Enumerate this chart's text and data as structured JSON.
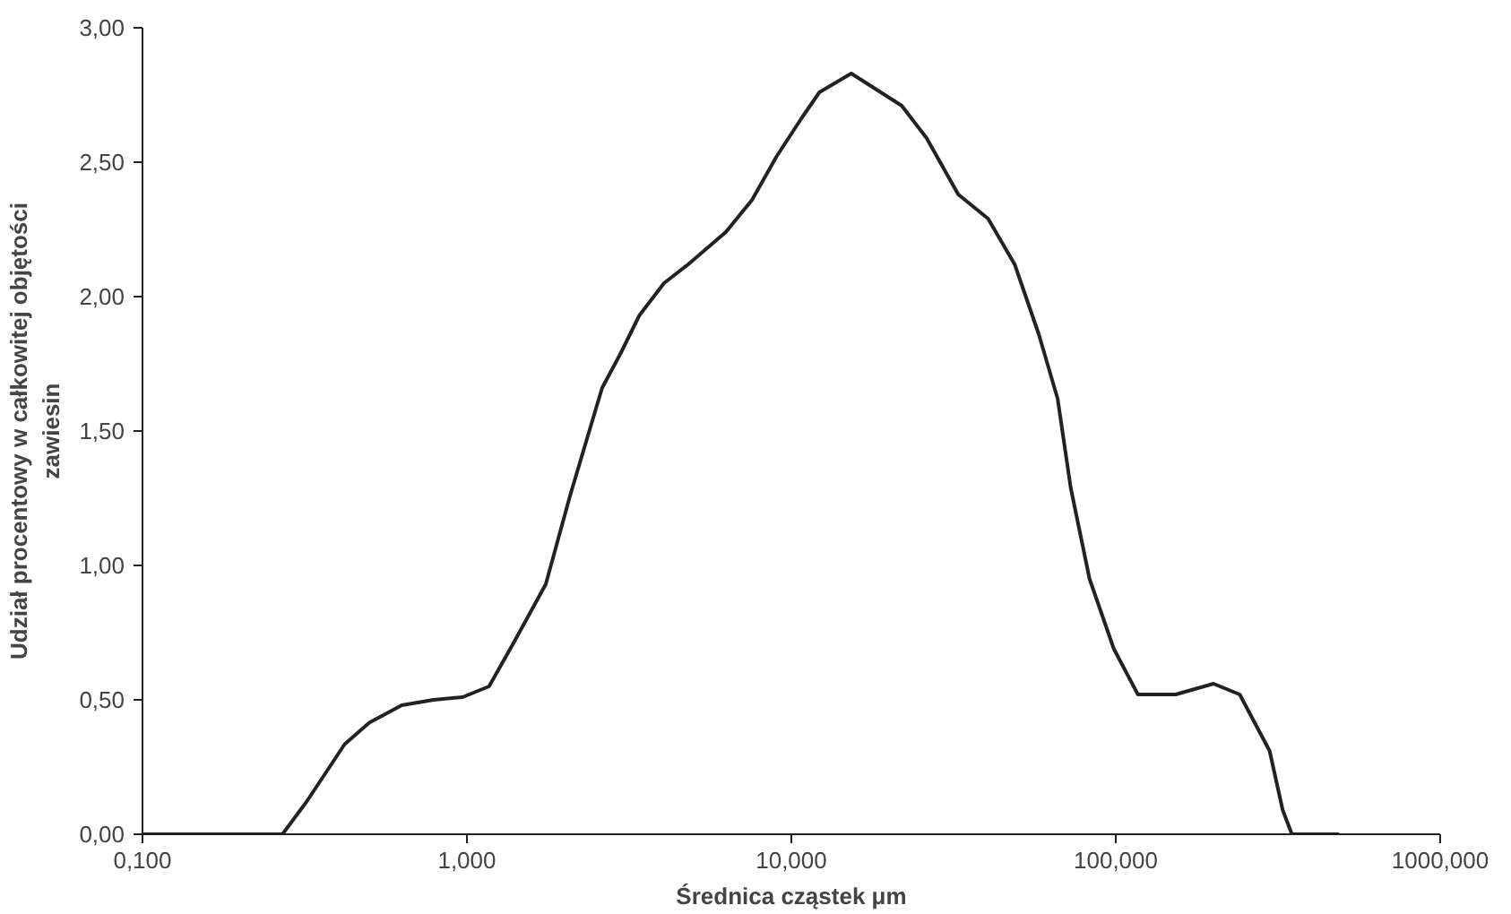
{
  "chart_data": {
    "type": "line",
    "xlabel": "Średnica cząstek μm",
    "ylabel": "Udział procentowy w całkowitej objętości\nzawiesin",
    "log": "x",
    "grid": false,
    "marker": "none",
    "line_style": "solid",
    "xlim": [
      0.1,
      1000
    ],
    "xticks": [
      {
        "value": 0.1,
        "label": "0,100"
      },
      {
        "value": 1,
        "label": "1,000"
      },
      {
        "value": 10,
        "label": "10,000"
      },
      {
        "value": 100,
        "label": "100,000"
      },
      {
        "value": 1000,
        "label": "1000,000"
      }
    ],
    "ylim": [
      0,
      3
    ],
    "yticks": [
      {
        "value": 0,
        "label": "0,00"
      },
      {
        "value": 0.5,
        "label": "0,50"
      },
      {
        "value": 1,
        "label": "1,00"
      },
      {
        "value": 1.5,
        "label": "1,50"
      },
      {
        "value": 2,
        "label": "2,00"
      },
      {
        "value": 2.5,
        "label": "2,50"
      },
      {
        "value": 3,
        "label": "3,00"
      }
    ],
    "series": [
      {
        "color": "#222222",
        "x": [
          0.1,
          0.27,
          0.32,
          0.42,
          0.5,
          0.63,
          0.79,
          0.97,
          1.17,
          1.39,
          1.75,
          2.08,
          2.61,
          2.98,
          3.4,
          4.05,
          4.81,
          6.28,
          7.57,
          8.99,
          10.7,
          12.2,
          15.3,
          21.9,
          26.1,
          32.7,
          40.4,
          48.8,
          57.9,
          66.2,
          72.6,
          83,
          98.6,
          117,
          153,
          200,
          241,
          298,
          327,
          349,
          488
        ],
        "values": [
          0,
          0,
          0.12,
          0.335,
          0.415,
          0.48,
          0.5,
          0.51,
          0.55,
          0.71,
          0.93,
          1.26,
          1.66,
          1.79,
          1.93,
          2.05,
          2.12,
          2.24,
          2.36,
          2.52,
          2.66,
          2.76,
          2.83,
          2.71,
          2.59,
          2.38,
          2.29,
          2.12,
          1.86,
          1.62,
          1.29,
          0.95,
          0.69,
          0.52,
          0.52,
          0.56,
          0.52,
          0.31,
          0.09,
          0,
          0
        ]
      }
    ]
  }
}
